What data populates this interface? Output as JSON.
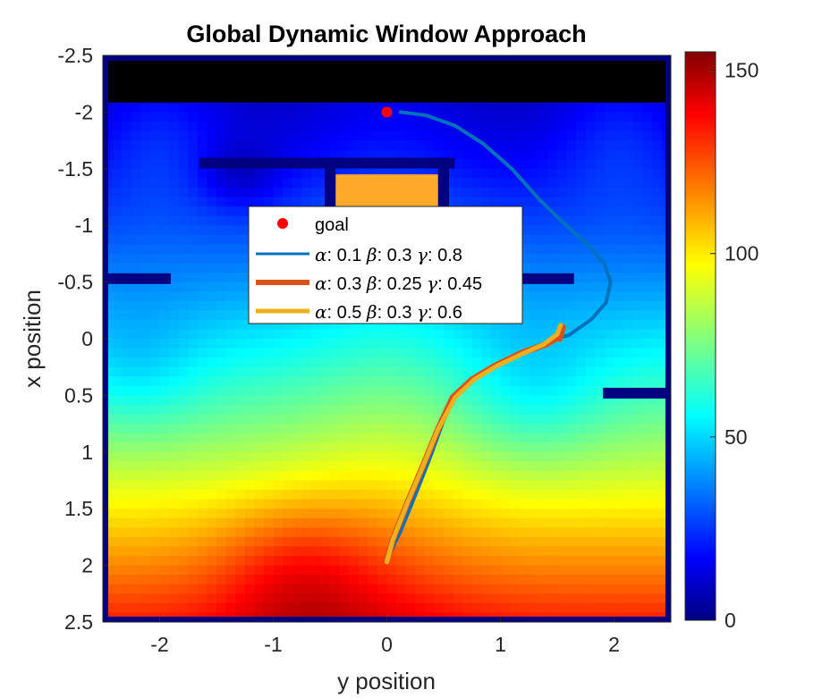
{
  "chart_data": {
    "type": "heatmap",
    "title": "Global Dynamic Window Approach",
    "xlabel": "y position",
    "ylabel": "x position",
    "xlim": [
      -2.5,
      2.5
    ],
    "ylim": [
      -2.5,
      2.5
    ],
    "y_reversed": true,
    "xticks": [
      "-2",
      "-1",
      "0",
      "1",
      "2"
    ],
    "xtick_values": [
      -2,
      -1,
      0,
      1,
      2
    ],
    "yticks": [
      "-2.5",
      "-2",
      "-1.5",
      "-1",
      "-0.5",
      "0",
      "0.5",
      "1",
      "1.5",
      "2",
      "2.5"
    ],
    "ytick_values": [
      -2.5,
      -2,
      -1.5,
      -1,
      -0.5,
      0,
      0.5,
      1,
      1.5,
      2,
      2.5
    ],
    "colorbar": {
      "range": [
        0,
        155
      ],
      "ticks": [
        "0",
        "50",
        "100",
        "150"
      ],
      "tick_values": [
        0,
        50,
        100,
        150
      ],
      "colormap": "jet"
    },
    "walls": [
      {
        "y": [
          -2.5,
          2.5
        ],
        "x": [
          -2.5,
          -2.5
        ]
      },
      {
        "y": [
          -2.5,
          2.5
        ],
        "x": [
          2.5,
          2.5
        ]
      },
      {
        "y": [
          -2.5,
          -2.5
        ],
        "x": [
          -2.5,
          2.5
        ]
      },
      {
        "y": [
          2.5,
          2.5
        ],
        "x": [
          -2.5,
          2.5
        ]
      },
      {
        "y": [
          -1.6,
          0.55
        ],
        "x": [
          -1.55,
          -1.55
        ]
      },
      {
        "y": [
          -0.5,
          -0.5
        ],
        "x": [
          -1.55,
          -1.15
        ]
      },
      {
        "y": [
          0.5,
          0.5
        ],
        "x": [
          -1.55,
          -1.15
        ]
      },
      {
        "y": [
          -2.5,
          -1.95
        ],
        "x": [
          -0.53,
          -0.53
        ]
      },
      {
        "y": [
          1.2,
          1.6
        ],
        "x": [
          -0.53,
          -0.53
        ]
      },
      {
        "y": [
          1.95,
          2.5
        ],
        "x": [
          0.48,
          0.48
        ]
      }
    ],
    "goal": {
      "label": "goal",
      "y": 0.0,
      "x": -2.0,
      "color": "#ff0000"
    },
    "series": [
      {
        "alpha": "0.1",
        "beta": "0.3",
        "gamma": "0.8",
        "color": "#0072bd",
        "points": [
          [
            0.12,
            -2.0
          ],
          [
            0.35,
            -1.97
          ],
          [
            0.6,
            -1.88
          ],
          [
            0.85,
            -1.72
          ],
          [
            1.1,
            -1.5
          ],
          [
            1.35,
            -1.22
          ],
          [
            1.6,
            -0.98
          ],
          [
            1.78,
            -0.82
          ],
          [
            1.92,
            -0.65
          ],
          [
            1.97,
            -0.5
          ],
          [
            1.93,
            -0.32
          ],
          [
            1.8,
            -0.17
          ],
          [
            1.6,
            -0.03
          ],
          [
            1.48,
            0.0
          ],
          [
            1.2,
            0.12
          ],
          [
            0.95,
            0.25
          ],
          [
            0.75,
            0.37
          ],
          [
            0.6,
            0.5
          ],
          [
            0.5,
            0.72
          ],
          [
            0.38,
            1.05
          ],
          [
            0.25,
            1.38
          ],
          [
            0.12,
            1.7
          ],
          [
            0.0,
            1.95
          ]
        ]
      },
      {
        "alpha": "0.3",
        "beta": "0.25",
        "gamma": "0.45",
        "color": "#d95319",
        "points": [
          [
            0.0,
            1.95
          ],
          [
            0.05,
            1.78
          ],
          [
            0.18,
            1.45
          ],
          [
            0.32,
            1.12
          ],
          [
            0.45,
            0.8
          ],
          [
            0.58,
            0.52
          ],
          [
            0.75,
            0.36
          ],
          [
            0.95,
            0.24
          ],
          [
            1.2,
            0.12
          ],
          [
            1.4,
            0.05
          ],
          [
            1.52,
            -0.02
          ],
          [
            1.55,
            -0.1
          ],
          [
            1.52,
            0.0
          ]
        ]
      },
      {
        "alpha": "0.5",
        "beta": "0.3",
        "gamma": "0.6",
        "color": "#edb120",
        "points": [
          [
            0.0,
            1.97
          ],
          [
            0.05,
            1.78
          ],
          [
            0.18,
            1.45
          ],
          [
            0.32,
            1.12
          ],
          [
            0.45,
            0.8
          ],
          [
            0.6,
            0.52
          ],
          [
            0.77,
            0.36
          ],
          [
            0.97,
            0.24
          ],
          [
            1.2,
            0.13
          ],
          [
            1.38,
            0.05
          ],
          [
            1.5,
            -0.04
          ],
          [
            1.53,
            -0.12
          ]
        ]
      }
    ],
    "legend": {
      "placement": "center-left"
    }
  }
}
